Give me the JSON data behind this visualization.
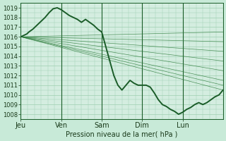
{
  "title": "Pression niveau de la mer( hPa )",
  "xlim": [
    0,
    5.0
  ],
  "ylim": [
    1007.5,
    1019.5
  ],
  "yticks": [
    1008,
    1009,
    1010,
    1011,
    1012,
    1013,
    1014,
    1015,
    1016,
    1017,
    1018,
    1019
  ],
  "xtick_labels": [
    "Jeu",
    "Ven",
    "Sam",
    "Dim",
    "Lun"
  ],
  "xtick_positions": [
    0,
    1,
    2,
    3,
    4
  ],
  "bg_color": "#c8ead8",
  "plot_bg_color": "#d4ede0",
  "grid_color": "#9ecfb0",
  "line_color": "#1a5c28",
  "line_color_thin": "#2a7a38",
  "ensemble_lines": [
    {
      "x": [
        0.0,
        5.0
      ],
      "y": [
        1016.0,
        1016.5
      ]
    },
    {
      "x": [
        0.0,
        5.0
      ],
      "y": [
        1016.0,
        1015.5
      ]
    },
    {
      "x": [
        0.0,
        5.0
      ],
      "y": [
        1016.0,
        1014.5
      ]
    },
    {
      "x": [
        0.0,
        5.0
      ],
      "y": [
        1016.0,
        1013.5
      ]
    },
    {
      "x": [
        0.0,
        5.0
      ],
      "y": [
        1016.0,
        1012.5
      ]
    },
    {
      "x": [
        0.0,
        5.0
      ],
      "y": [
        1016.0,
        1011.5
      ]
    },
    {
      "x": [
        0.0,
        5.0
      ],
      "y": [
        1016.0,
        1011.0
      ]
    },
    {
      "x": [
        0.0,
        5.0
      ],
      "y": [
        1016.0,
        1010.5
      ]
    }
  ],
  "main_line_x": [
    0.0,
    0.05,
    0.1,
    0.15,
    0.2,
    0.3,
    0.4,
    0.5,
    0.6,
    0.7,
    0.8,
    0.9,
    1.0,
    1.1,
    1.2,
    1.3,
    1.4,
    1.5,
    1.6,
    1.7,
    1.8,
    1.9,
    2.0,
    2.1,
    2.2,
    2.3,
    2.4,
    2.5,
    2.6,
    2.7,
    2.8,
    2.9,
    3.0,
    3.1,
    3.2,
    3.3,
    3.4,
    3.5,
    3.6,
    3.7,
    3.8,
    3.9,
    4.0,
    4.1,
    4.2,
    4.3,
    4.4,
    4.5,
    4.6,
    4.7,
    4.8,
    4.9,
    5.0
  ],
  "main_line_y": [
    1016.0,
    1016.1,
    1016.2,
    1016.3,
    1016.5,
    1016.8,
    1017.2,
    1017.6,
    1018.0,
    1018.5,
    1018.9,
    1019.0,
    1018.8,
    1018.5,
    1018.2,
    1018.0,
    1017.8,
    1017.5,
    1017.8,
    1017.5,
    1017.2,
    1016.8,
    1016.5,
    1015.0,
    1013.5,
    1012.0,
    1011.0,
    1010.5,
    1011.0,
    1011.5,
    1011.2,
    1011.0,
    1011.0,
    1011.0,
    1010.8,
    1010.2,
    1009.5,
    1009.0,
    1008.8,
    1008.5,
    1008.3,
    1008.0,
    1008.2,
    1008.5,
    1008.7,
    1009.0,
    1009.2,
    1009.0,
    1009.2,
    1009.5,
    1009.8,
    1010.0,
    1010.5
  ]
}
